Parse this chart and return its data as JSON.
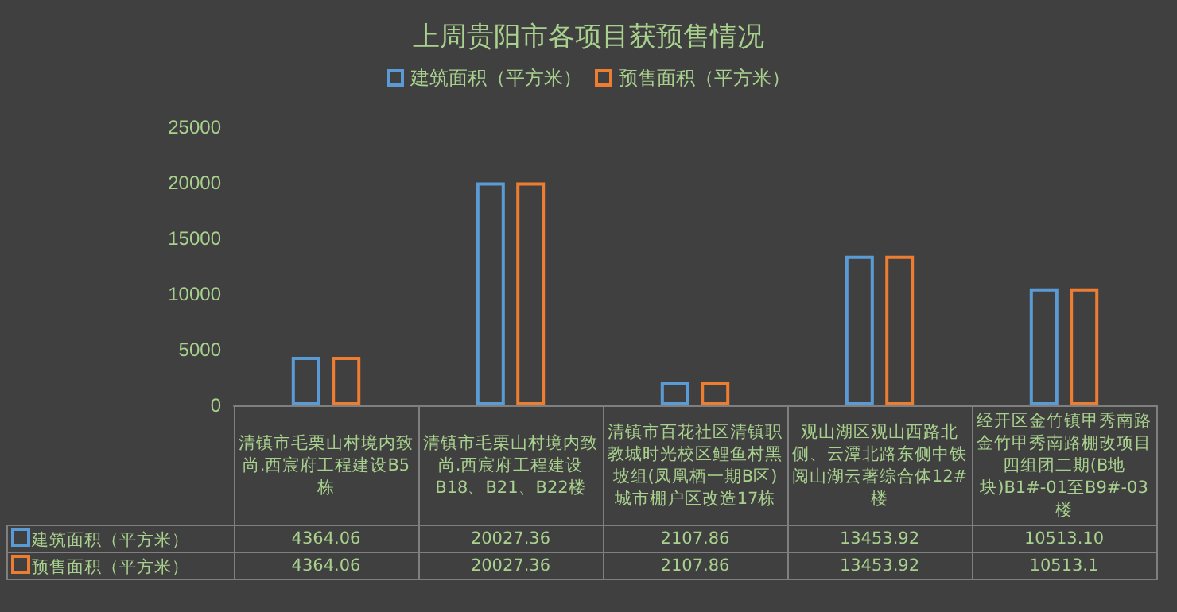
{
  "chart_data": {
    "type": "bar",
    "title": "上周贵阳市各项目获预售情况",
    "categories": [
      "清镇市毛栗山村境内致尚.西宸府工程建设B5栋",
      "清镇市毛栗山村境内致尚.西宸府工程建设B18、B21、B22楼",
      "清镇市百花社区清镇职教城时光校区鲤鱼村黑坡组(凤凰栖一期B区)城市棚户区改造17栋",
      "观山湖区观山西路北侧、云潭北路东侧中铁阅山湖云著综合体12#楼",
      "经开区金竹镇甲秀南路金竹甲秀南路棚改项目四组团二期(B地块)B1#-01至B9#-03楼"
    ],
    "series": [
      {
        "name": "建筑面积（平方米）",
        "color": "#5b9bd5",
        "values": [
          4364.06,
          20027.36,
          2107.86,
          13453.92,
          10513.1
        ],
        "value_labels": [
          "4364.06",
          "20027.36",
          "2107.86",
          "13453.92",
          "10513.10"
        ]
      },
      {
        "name": "预售面积（平方米）",
        "color": "#ed7d31",
        "values": [
          4364.06,
          20027.36,
          2107.86,
          13453.92,
          10513.1
        ],
        "value_labels": [
          "4364.06",
          "20027.36",
          "2107.86",
          "13453.92",
          "10513.1"
        ]
      }
    ],
    "ylim": [
      0,
      25000
    ],
    "yticks": [
      0,
      5000,
      10000,
      15000,
      20000,
      25000
    ],
    "legend": "top"
  }
}
